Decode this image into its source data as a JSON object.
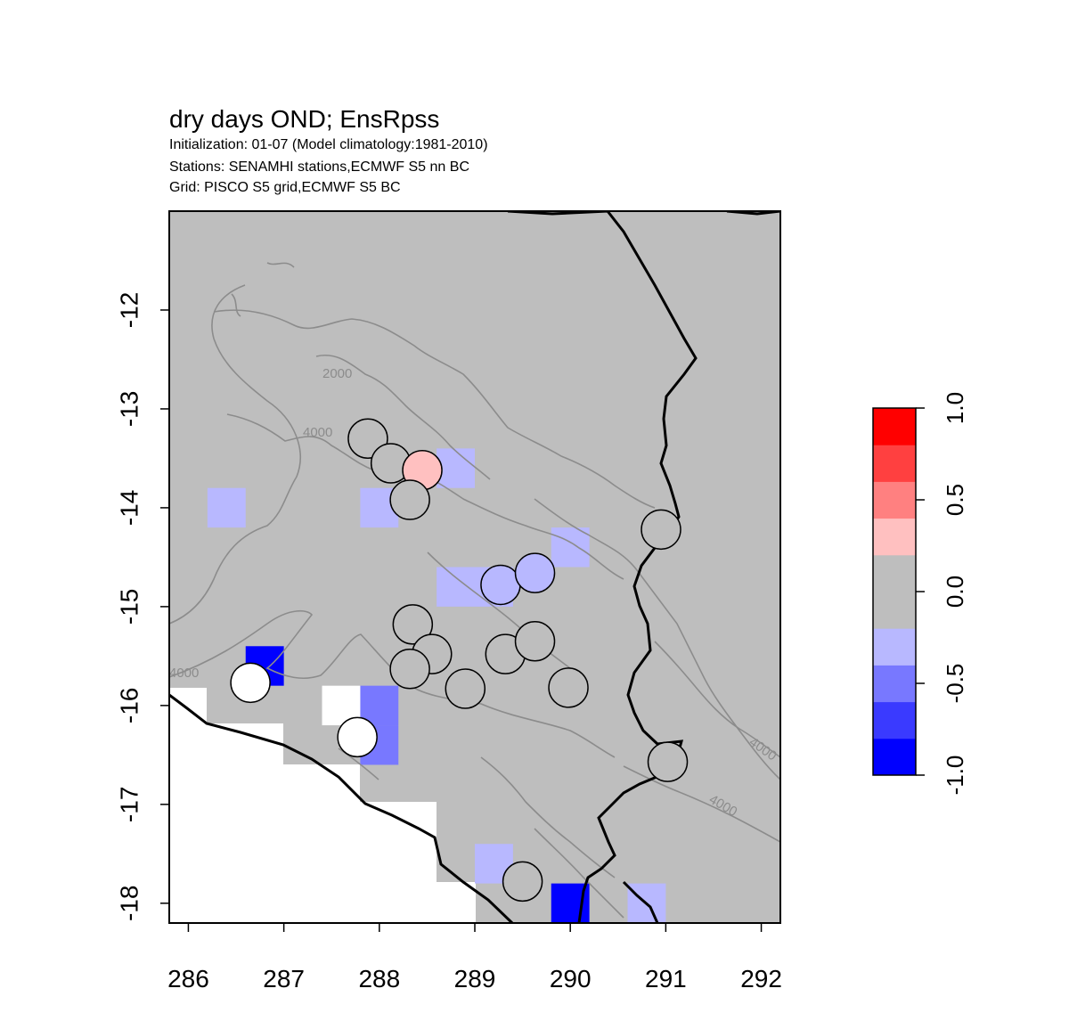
{
  "title": "dry days OND; EnsRpss",
  "subtitle_lines": [
    "Initialization: 01-07 (Model climatology:1981-2010)",
    "Stations: SENAMHI stations,ECMWF S5 nn BC",
    "Grid: PISCO S5 grid,ECMWF S5 BC"
  ],
  "map": {
    "x_ticks": [
      "286",
      "287",
      "288",
      "289",
      "290",
      "291",
      "292"
    ],
    "y_ticks": [
      "-12",
      "-13",
      "-14",
      "-15",
      "-16",
      "-17",
      "-18"
    ],
    "x_range": [
      285.8,
      292.2
    ],
    "y_range": [
      -18.2,
      -11.0
    ],
    "background_color": "#bebebe",
    "contour_labels": [
      "2000",
      "4000",
      "4000",
      "4000",
      "4000"
    ],
    "grid_cells": [
      {
        "lon": 286.4,
        "lat": -14.0,
        "value": -0.3
      },
      {
        "lon": 288.0,
        "lat": -14.0,
        "value": -0.3
      },
      {
        "lon": 288.8,
        "lat": -13.6,
        "value": -0.3
      },
      {
        "lon": 289.2,
        "lat": -14.8,
        "value": -0.3
      },
      {
        "lon": 288.8,
        "lat": -14.8,
        "value": -0.3
      },
      {
        "lon": 290.0,
        "lat": -14.4,
        "value": -0.3
      },
      {
        "lon": 286.8,
        "lat": -15.6,
        "value": -0.8
      },
      {
        "lon": 288.0,
        "lat": -16.0,
        "value": -0.6
      },
      {
        "lon": 288.0,
        "lat": -16.4,
        "value": -0.6
      },
      {
        "lon": 289.2,
        "lat": -17.6,
        "value": -0.3
      },
      {
        "lon": 290.0,
        "lat": -18.0,
        "value": -0.8
      },
      {
        "lon": 290.8,
        "lat": -18.0,
        "value": -0.3
      },
      {
        "lon": 287.6,
        "lat": -16.0,
        "value": null
      }
    ],
    "stations": [
      {
        "lon": 287.88,
        "lat": -13.3,
        "value": 0.0
      },
      {
        "lon": 288.12,
        "lat": -13.55,
        "value": 0.0
      },
      {
        "lon": 288.45,
        "lat": -13.62,
        "value": 0.3
      },
      {
        "lon": 288.32,
        "lat": -13.92,
        "value": 0.0
      },
      {
        "lon": 290.95,
        "lat": -14.22,
        "value": 0.0
      },
      {
        "lon": 289.27,
        "lat": -14.78,
        "value": -0.3
      },
      {
        "lon": 289.63,
        "lat": -14.66,
        "value": -0.3
      },
      {
        "lon": 288.35,
        "lat": -15.18,
        "value": 0.0
      },
      {
        "lon": 288.55,
        "lat": -15.48,
        "value": 0.0
      },
      {
        "lon": 288.32,
        "lat": -15.63,
        "value": 0.0
      },
      {
        "lon": 289.32,
        "lat": -15.48,
        "value": 0.0
      },
      {
        "lon": 289.63,
        "lat": -15.35,
        "value": 0.0
      },
      {
        "lon": 288.9,
        "lat": -15.83,
        "value": 0.0
      },
      {
        "lon": 289.98,
        "lat": -15.82,
        "value": 0.0
      },
      {
        "lon": 286.65,
        "lat": -15.77,
        "value": null
      },
      {
        "lon": 287.77,
        "lat": -16.32,
        "value": null
      },
      {
        "lon": 291.02,
        "lat": -16.57,
        "value": 0.0
      },
      {
        "lon": 289.5,
        "lat": -17.78,
        "value": 0.0
      }
    ]
  },
  "colorbar": {
    "labels": [
      "-1.0",
      "-0.5",
      "0.0",
      "0.5",
      "1.0"
    ],
    "colors": [
      "#0000ff",
      "#3a3aff",
      "#7878ff",
      "#b8b8ff",
      "#bebebe",
      "#bebebe",
      "#ffc0c0",
      "#ff8080",
      "#ff4040",
      "#ff0000"
    ]
  },
  "chart_data": {
    "type": "heatmap",
    "title": "dry days OND; EnsRpss",
    "xlim": [
      285.8,
      292.2
    ],
    "ylim": [
      -18.2,
      -11.0
    ],
    "value_range": [
      -1.0,
      1.0
    ],
    "legend_position": "right"
  }
}
